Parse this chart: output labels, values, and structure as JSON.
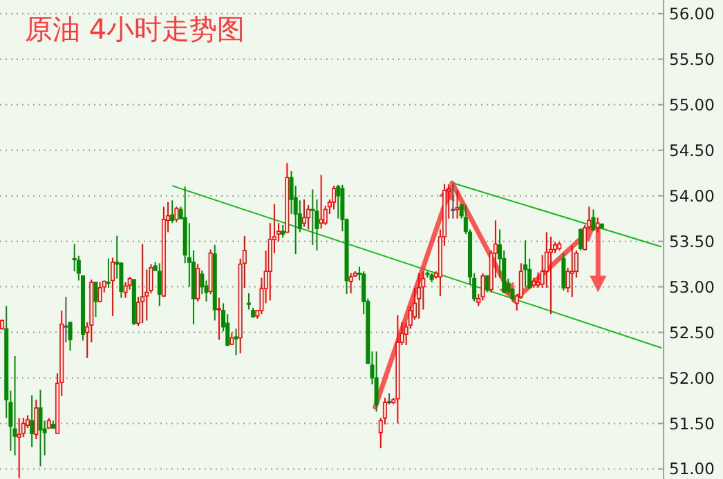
{
  "chart_data": {
    "type": "candlestick",
    "title": "原油 4小时走势图",
    "categories": [
      null,
      null,
      null,
      null,
      null,
      null,
      null,
      null,
      null,
      null,
      null,
      null,
      null,
      null,
      null,
      null,
      null,
      null,
      null,
      null,
      null,
      null,
      null,
      null,
      null,
      null,
      null,
      null,
      null,
      null,
      null,
      null,
      null,
      null,
      null,
      null,
      null,
      null,
      null,
      null,
      null,
      null,
      null,
      null,
      null,
      null,
      null,
      null,
      null,
      null,
      null,
      null,
      null,
      null,
      null,
      null,
      null,
      null,
      null,
      null,
      null,
      null,
      null,
      null,
      null,
      null,
      null,
      null,
      null,
      null,
      null,
      null,
      null,
      null,
      null,
      null,
      null,
      null,
      null,
      null,
      null,
      null,
      null,
      null,
      null,
      null,
      null,
      null,
      null,
      null,
      null,
      null,
      null,
      null,
      null,
      null,
      null,
      null,
      null,
      null,
      null,
      null,
      null,
      null,
      null,
      null,
      null,
      null,
      null,
      null,
      null,
      null,
      null,
      null,
      null,
      null,
      null,
      null,
      null,
      null,
      null,
      null,
      null,
      null,
      null,
      null,
      null,
      null,
      null,
      null,
      null,
      null,
      null,
      null,
      null,
      null,
      null,
      null,
      null,
      null,
      null,
      null,
      null,
      null,
      null,
      null,
      null,
      null,
      null,
      null,
      null,
      null,
      null,
      null,
      null,
      null
    ],
    "ohlc": [
      [
        52.54,
        52.64,
        52.53,
        52.63
      ],
      [
        52.54,
        52.79,
        51.56,
        51.76
      ],
      [
        51.73,
        51.86,
        51.2,
        51.47
      ],
      [
        51.44,
        52.24,
        51.15,
        51.36
      ],
      [
        51.35,
        51.56,
        50.9,
        51.38
      ],
      [
        51.39,
        51.56,
        51.35,
        51.5
      ],
      [
        51.48,
        51.59,
        51.45,
        51.54
      ],
      [
        51.53,
        51.81,
        51.24,
        51.39
      ],
      [
        51.38,
        51.76,
        51.33,
        51.67
      ],
      [
        51.67,
        51.87,
        51.03,
        51.43
      ],
      [
        51.44,
        51.53,
        51.15,
        51.4
      ],
      [
        51.45,
        51.56,
        51.44,
        51.53
      ],
      [
        51.49,
        51.53,
        51.44,
        51.45
      ],
      [
        51.39,
        52.05,
        51.39,
        51.94
      ],
      [
        51.95,
        52.74,
        51.8,
        52.59
      ],
      [
        52.57,
        52.89,
        52.39,
        52.57
      ],
      [
        52.61,
        52.61,
        52.3,
        52.42
      ],
      [
        53.31,
        53.47,
        53.17,
        53.3
      ],
      [
        53.29,
        53.34,
        53.07,
        53.15
      ],
      [
        53.12,
        53.12,
        52.41,
        52.48
      ],
      [
        52.5,
        52.61,
        52.22,
        52.56
      ],
      [
        52.58,
        53.08,
        52.39,
        53.05
      ],
      [
        53.05,
        53.05,
        52.67,
        52.84
      ],
      [
        52.84,
        53.05,
        52.83,
        52.99
      ],
      [
        53.0,
        53.07,
        52.94,
        53.06
      ],
      [
        53.05,
        53.31,
        52.99,
        53.04
      ],
      [
        53.07,
        53.32,
        52.68,
        53.27
      ],
      [
        53.27,
        53.56,
        53.09,
        53.25
      ],
      [
        53.26,
        53.27,
        52.88,
        52.95
      ],
      [
        52.94,
        53.05,
        52.88,
        53.01
      ],
      [
        53.02,
        53.11,
        52.97,
        53.09
      ],
      [
        53.08,
        53.08,
        52.58,
        52.6
      ],
      [
        52.6,
        52.89,
        52.57,
        52.83
      ],
      [
        52.84,
        53.47,
        52.6,
        52.89
      ],
      [
        52.9,
        53.19,
        52.63,
        52.94
      ],
      [
        52.96,
        53.25,
        52.93,
        53.21
      ],
      [
        53.23,
        53.27,
        53.18,
        53.18
      ],
      [
        53.17,
        53.26,
        52.79,
        52.92
      ],
      [
        52.9,
        53.88,
        52.89,
        53.74
      ],
      [
        53.73,
        53.93,
        53.6,
        53.78
      ],
      [
        53.79,
        53.95,
        53.7,
        53.73
      ],
      [
        53.74,
        53.88,
        53.71,
        53.86
      ],
      [
        53.85,
        53.88,
        53.74,
        53.75
      ],
      [
        53.76,
        54.1,
        53.26,
        53.35
      ],
      [
        53.32,
        53.7,
        53.0,
        53.27
      ],
      [
        53.27,
        53.4,
        52.59,
        52.87
      ],
      [
        52.87,
        53.25,
        52.84,
        53.2
      ],
      [
        53.14,
        53.18,
        52.92,
        53.0
      ],
      [
        53.01,
        53.07,
        52.84,
        52.94
      ],
      [
        52.95,
        53.41,
        52.92,
        53.37
      ],
      [
        53.36,
        53.46,
        52.63,
        52.75
      ],
      [
        52.75,
        52.88,
        52.42,
        52.76
      ],
      [
        52.74,
        52.82,
        52.51,
        52.56
      ],
      [
        52.6,
        52.7,
        52.35,
        52.36
      ],
      [
        52.37,
        52.5,
        52.36,
        52.44
      ],
      [
        52.45,
        52.54,
        52.25,
        52.43
      ],
      [
        52.44,
        53.31,
        52.27,
        53.25
      ],
      [
        53.26,
        53.56,
        52.99,
        53.4
      ],
      [
        52.82,
        52.93,
        52.75,
        52.81
      ],
      [
        52.74,
        52.77,
        52.67,
        52.67
      ],
      [
        52.68,
        52.74,
        52.65,
        52.74
      ],
      [
        52.74,
        53.1,
        52.7,
        52.98
      ],
      [
        52.98,
        53.4,
        52.82,
        53.17
      ],
      [
        53.17,
        53.7,
        52.85,
        53.52
      ],
      [
        53.52,
        53.91,
        53.37,
        53.55
      ],
      [
        53.58,
        53.7,
        53.5,
        53.61
      ],
      [
        53.61,
        53.68,
        53.54,
        53.58
      ],
      [
        53.6,
        54.36,
        53.6,
        54.2
      ],
      [
        54.2,
        54.27,
        53.8,
        53.96
      ],
      [
        53.98,
        54.11,
        53.36,
        53.8
      ],
      [
        53.8,
        53.95,
        53.6,
        53.64
      ],
      [
        53.7,
        53.96,
        53.66,
        53.76
      ],
      [
        53.76,
        53.9,
        53.63,
        53.85
      ],
      [
        53.85,
        54.07,
        53.46,
        53.84
      ],
      [
        53.83,
        53.96,
        53.4,
        53.64
      ],
      [
        53.7,
        54.23,
        53.64,
        53.74
      ],
      [
        53.7,
        53.89,
        53.68,
        53.85
      ],
      [
        53.88,
        53.96,
        53.8,
        53.93
      ],
      [
        53.93,
        54.11,
        53.85,
        54.08
      ],
      [
        54.1,
        54.12,
        53.75,
        54.0
      ],
      [
        54.08,
        54.12,
        53.61,
        53.74
      ],
      [
        53.74,
        53.75,
        52.92,
        53.07
      ],
      [
        53.06,
        53.15,
        52.93,
        53.11
      ],
      [
        53.12,
        53.17,
        53.11,
        53.15
      ],
      [
        53.15,
        53.22,
        53.07,
        53.14
      ],
      [
        53.14,
        53.17,
        52.7,
        52.84
      ],
      [
        52.84,
        52.87,
        52.16,
        52.16
      ],
      [
        52.14,
        52.29,
        51.93,
        52.0
      ],
      [
        52.0,
        52.29,
        51.63,
        51.71
      ],
      [
        51.4,
        51.56,
        51.23,
        51.53
      ],
      [
        51.56,
        51.78,
        51.49,
        51.73
      ],
      [
        51.74,
        51.83,
        51.71,
        51.74
      ],
      [
        51.73,
        51.78,
        51.71,
        51.76
      ],
      [
        51.77,
        52.69,
        51.5,
        52.39
      ],
      [
        52.39,
        52.61,
        52.36,
        52.49
      ],
      [
        52.48,
        52.61,
        52.36,
        52.56
      ],
      [
        52.58,
        52.79,
        52.54,
        52.74
      ],
      [
        52.67,
        52.99,
        52.64,
        52.82
      ],
      [
        52.87,
        53.15,
        52.65,
        52.99
      ],
      [
        53.0,
        53.17,
        52.75,
        53.09
      ],
      [
        53.15,
        53.17,
        53.1,
        53.14
      ],
      [
        53.13,
        53.15,
        53.05,
        53.08
      ],
      [
        53.11,
        53.17,
        53.09,
        53.15
      ],
      [
        53.11,
        53.63,
        52.9,
        53.55
      ],
      [
        53.55,
        54.13,
        53.45,
        54.06
      ],
      [
        54.05,
        54.13,
        53.75,
        54.07
      ],
      [
        53.85,
        54.13,
        53.75,
        53.85
      ],
      [
        53.85,
        54.06,
        53.75,
        53.87
      ],
      [
        53.9,
        53.91,
        53.75,
        53.78
      ],
      [
        53.76,
        53.9,
        53.58,
        53.61
      ],
      [
        53.6,
        53.63,
        53.02,
        53.11
      ],
      [
        53.09,
        53.15,
        52.84,
        52.87
      ],
      [
        52.83,
        52.92,
        52.79,
        52.87
      ],
      [
        52.89,
        53.15,
        52.85,
        53.12
      ],
      [
        53.12,
        53.12,
        52.94,
        52.97
      ],
      [
        52.97,
        53.4,
        52.94,
        53.37
      ],
      [
        53.37,
        53.73,
        53.1,
        53.47
      ],
      [
        53.46,
        53.63,
        53.1,
        53.31
      ],
      [
        53.31,
        53.4,
        52.94,
        52.94
      ],
      [
        53.04,
        53.09,
        52.92,
        52.95
      ],
      [
        52.97,
        52.99,
        52.84,
        52.87
      ],
      [
        52.82,
        52.92,
        52.74,
        52.9
      ],
      [
        52.89,
        53.26,
        52.87,
        53.17
      ],
      [
        53.24,
        53.51,
        53.0,
        53.19
      ],
      [
        53.19,
        53.31,
        52.98,
        52.99
      ],
      [
        53.02,
        53.1,
        52.99,
        53.06
      ],
      [
        53.02,
        53.16,
        52.99,
        53.05
      ],
      [
        53.03,
        53.35,
        52.99,
        53.17
      ],
      [
        53.17,
        53.6,
        52.99,
        53.38
      ],
      [
        53.38,
        53.55,
        52.7,
        53.41
      ],
      [
        53.41,
        53.49,
        53.37,
        53.46
      ],
      [
        53.42,
        53.49,
        53.4,
        53.47
      ],
      [
        53.31,
        53.37,
        52.96,
        52.99
      ],
      [
        52.99,
        53.21,
        52.94,
        53.17
      ],
      [
        53.15,
        53.45,
        52.89,
        53.17
      ],
      [
        53.17,
        53.4,
        53.1,
        53.37
      ],
      [
        53.63,
        53.64,
        53.4,
        53.42
      ],
      [
        53.41,
        53.68,
        53.4,
        53.65
      ],
      [
        53.66,
        53.88,
        53.63,
        53.73
      ],
      [
        53.76,
        53.85,
        53.61,
        53.63
      ],
      [
        53.65,
        53.76,
        53.6,
        53.7
      ],
      [
        53.69,
        53.69,
        53.64,
        53.65
      ],
      null,
      null,
      null,
      null,
      null,
      null,
      null,
      null,
      null,
      null,
      null,
      null,
      null,
      null
    ],
    "series": [
      {
        "type": "line",
        "color": "#1eb41e",
        "values": [
          null,
          null,
          null,
          null,
          null,
          null,
          null,
          null,
          null,
          null,
          null,
          null,
          null,
          null,
          null,
          null,
          null,
          null,
          null,
          null,
          null,
          null,
          null,
          null,
          null,
          null,
          null,
          null,
          null,
          null,
          null,
          null,
          null,
          null,
          null,
          null,
          null,
          null,
          null,
          null,
          54.11,
          null,
          null,
          null,
          null,
          null,
          null,
          null,
          null,
          null,
          null,
          null,
          null,
          null,
          null,
          null,
          null,
          null,
          null,
          null,
          null,
          null,
          null,
          null,
          null,
          null,
          null,
          null,
          null,
          null,
          null,
          null,
          null,
          null,
          null,
          null,
          null,
          null,
          null,
          null,
          null,
          null,
          null,
          null,
          null,
          null,
          null,
          null,
          null,
          null,
          null,
          null,
          null,
          null,
          null,
          null,
          null,
          null,
          null,
          null,
          null,
          null,
          null,
          null,
          null,
          null,
          null,
          null,
          null,
          null,
          null,
          null,
          null,
          null,
          null,
          null,
          null,
          null,
          null,
          null,
          null,
          null,
          null,
          null,
          null,
          null,
          null,
          null,
          null,
          null,
          null,
          null,
          null,
          null,
          null,
          null,
          null,
          null,
          null,
          null,
          null,
          null,
          null,
          null,
          null,
          null,
          null,
          null,
          null,
          null,
          null,
          null,
          null,
          null,
          null,
          52.33
        ]
      },
      {
        "type": "line",
        "color": "#1eb41e",
        "values": [
          null,
          null,
          null,
          null,
          null,
          null,
          null,
          null,
          null,
          null,
          null,
          null,
          null,
          null,
          null,
          null,
          null,
          null,
          null,
          null,
          null,
          null,
          null,
          null,
          null,
          null,
          null,
          null,
          null,
          null,
          null,
          null,
          null,
          null,
          null,
          null,
          null,
          null,
          null,
          null,
          null,
          null,
          null,
          null,
          null,
          null,
          null,
          null,
          null,
          null,
          null,
          null,
          null,
          null,
          null,
          null,
          null,
          null,
          null,
          null,
          null,
          null,
          null,
          null,
          null,
          null,
          null,
          null,
          null,
          null,
          null,
          null,
          null,
          null,
          null,
          null,
          null,
          null,
          null,
          null,
          null,
          null,
          null,
          null,
          null,
          null,
          null,
          null,
          null,
          null,
          null,
          null,
          null,
          null,
          null,
          null,
          null,
          null,
          null,
          null,
          null,
          null,
          null,
          null,
          null,
          null,
          54.14,
          null,
          null,
          null,
          null,
          null,
          null,
          null,
          null,
          null,
          null,
          null,
          null,
          null,
          null,
          null,
          null,
          null,
          null,
          null,
          null,
          null,
          null,
          null,
          null,
          null,
          null,
          null,
          null,
          null,
          null,
          null,
          null,
          null,
          null,
          null,
          null,
          null,
          null,
          null,
          null,
          null,
          null,
          null,
          null,
          null,
          null,
          null,
          null,
          53.44
        ]
      }
    ],
    "ylim": [
      50.89,
      56.15
    ],
    "yticks": [
      {
        "value": 51,
        "label": "51.00"
      },
      {
        "value": 51.5,
        "label": "51.50"
      },
      {
        "value": 52,
        "label": "52.00"
      },
      {
        "value": 52.5,
        "label": "52.50"
      },
      {
        "value": 53,
        "label": "53.00"
      },
      {
        "value": 53.5,
        "label": "53.50"
      },
      {
        "value": 54,
        "label": "54.00"
      },
      {
        "value": 54.5,
        "label": "54.50"
      },
      {
        "value": 55,
        "label": "55.00"
      },
      {
        "value": 55.5,
        "label": "55.50"
      },
      {
        "value": 56,
        "label": "56.00"
      }
    ],
    "tick_labels": "y",
    "grid": "y"
  }
}
